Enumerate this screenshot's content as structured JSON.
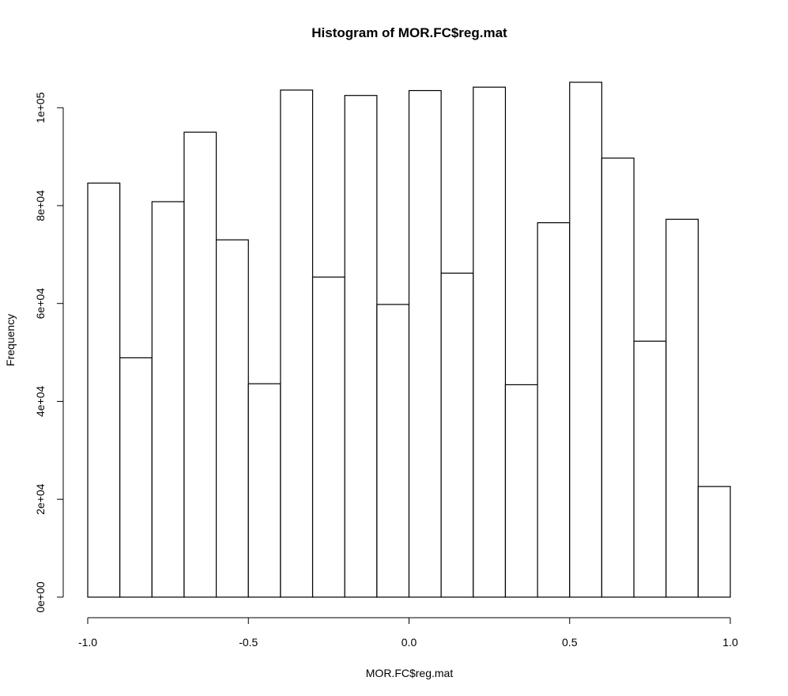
{
  "chart_data": {
    "type": "bar",
    "title": "Histogram of MOR.FC$reg.mat",
    "xlabel": "MOR.FC$reg.mat",
    "ylabel": "Frequency",
    "bin_edges": [
      -1.0,
      -0.9,
      -0.8,
      -0.7,
      -0.6,
      -0.5,
      -0.4,
      -0.3,
      -0.2,
      -0.1,
      0.0,
      0.1,
      0.2,
      0.3,
      0.4,
      0.5,
      0.6,
      0.7,
      0.8,
      0.9,
      1.0
    ],
    "values": [
      84600,
      48900,
      80800,
      95000,
      73000,
      43600,
      103600,
      65400,
      102500,
      59800,
      103500,
      66200,
      104200,
      43400,
      76500,
      105200,
      89700,
      52300,
      77200,
      22600
    ],
    "xlim": [
      -1.0,
      1.0
    ],
    "ylim": [
      0,
      105200
    ],
    "xticks": [
      -1.0,
      -0.5,
      0.0,
      0.5,
      1.0
    ],
    "xtick_labels": [
      "-1.0",
      "-0.5",
      "0.0",
      "0.5",
      "1.0"
    ],
    "yticks": [
      0,
      20000,
      40000,
      60000,
      80000,
      100000
    ],
    "ytick_labels": [
      "0e+00",
      "2e+04",
      "4e+04",
      "6e+04",
      "8e+04",
      "1e+05"
    ],
    "grid": false,
    "legend": "none"
  }
}
